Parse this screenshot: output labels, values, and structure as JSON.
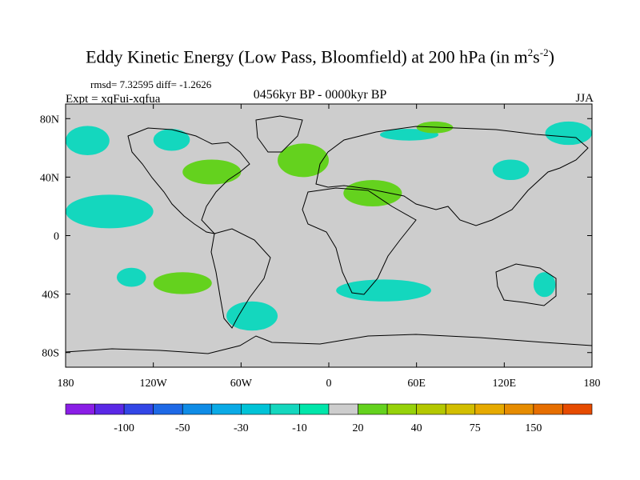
{
  "title": "Eddy Kinetic Energy (Low Pass, Bloomfield) at 200 hPa (in m",
  "title_unit_sup1": "2",
  "title_unit_mid": "s",
  "title_unit_sup2": "-2",
  "title_close": ")",
  "stats": "rmsd= 7.32595 diff= -1.2626",
  "experiment": "Expt = xqFui-xqfua",
  "period": "0456kyr BP - 0000kyr BP",
  "season": "JJA",
  "chart_data": {
    "type": "heatmap",
    "projection": "cylindrical-equidistant",
    "x_range": [
      -180,
      180
    ],
    "y_range": [
      -90,
      90
    ],
    "x_ticks": [
      {
        "value": -180,
        "label": "180"
      },
      {
        "value": -120,
        "label": "120W"
      },
      {
        "value": -60,
        "label": "60W"
      },
      {
        "value": 0,
        "label": "0"
      },
      {
        "value": 60,
        "label": "60E"
      },
      {
        "value": 120,
        "label": "120E"
      },
      {
        "value": 180,
        "label": "180"
      }
    ],
    "y_ticks": [
      {
        "value": 80,
        "label": "80N"
      },
      {
        "value": 40,
        "label": "40N"
      },
      {
        "value": 0,
        "label": "0"
      },
      {
        "value": -40,
        "label": "40S"
      },
      {
        "value": -80,
        "label": "80S"
      }
    ],
    "background_color": "#cdcdcd",
    "colorbar": {
      "colors": [
        "#8a1ee6",
        "#5a28e6",
        "#3246e6",
        "#1e69e6",
        "#0f8ce6",
        "#0aaae6",
        "#00c3d7",
        "#14d7be",
        "#00e6aa",
        "#cdcdcd",
        "#64d21e",
        "#96d20a",
        "#b4c800",
        "#d2be00",
        "#e6aa00",
        "#e68c00",
        "#e66e00",
        "#e64b00"
      ],
      "labels": [
        {
          "after_index": 1,
          "text": "-100"
        },
        {
          "after_index": 3,
          "text": "-50"
        },
        {
          "after_index": 5,
          "text": "-30"
        },
        {
          "after_index": 7,
          "text": "-10"
        },
        {
          "after_index": 9,
          "text": "20"
        },
        {
          "after_index": 11,
          "text": "40"
        },
        {
          "after_index": 13,
          "text": "75"
        },
        {
          "after_index": 15,
          "text": "150"
        }
      ]
    },
    "anomaly_regions": [
      {
        "class": "negative",
        "color": "#14d7be",
        "lon_range": [
          -180,
          -150
        ],
        "lat_range": [
          55,
          75
        ]
      },
      {
        "class": "negative",
        "color": "#14d7be",
        "lon_range": [
          -120,
          -95
        ],
        "lat_range": [
          58,
          73
        ]
      },
      {
        "class": "negative",
        "color": "#14d7be",
        "lon_range": [
          -180,
          -120
        ],
        "lat_range": [
          5,
          28
        ]
      },
      {
        "class": "negative",
        "color": "#14d7be",
        "lon_range": [
          -145,
          -125
        ],
        "lat_range": [
          -35,
          -22
        ]
      },
      {
        "class": "negative",
        "color": "#14d7be",
        "lon_range": [
          -70,
          -35
        ],
        "lat_range": [
          -65,
          -45
        ]
      },
      {
        "class": "negative",
        "color": "#14d7be",
        "lon_range": [
          5,
          70
        ],
        "lat_range": [
          -45,
          -30
        ]
      },
      {
        "class": "negative",
        "color": "#14d7be",
        "lon_range": [
          112,
          137
        ],
        "lat_range": [
          38,
          52
        ]
      },
      {
        "class": "negative",
        "color": "#14d7be",
        "lon_range": [
          148,
          180
        ],
        "lat_range": [
          62,
          78
        ]
      },
      {
        "class": "negative",
        "color": "#14d7be",
        "lon_range": [
          35,
          75
        ],
        "lat_range": [
          65,
          73
        ]
      },
      {
        "class": "negative",
        "color": "#14d7be",
        "lon_range": [
          140,
          155
        ],
        "lat_range": [
          -42,
          -25
        ]
      },
      {
        "class": "positive",
        "color": "#64d21e",
        "lon_range": [
          -100,
          -60
        ],
        "lat_range": [
          35,
          52
        ]
      },
      {
        "class": "positive",
        "color": "#64d21e",
        "lon_range": [
          -35,
          0
        ],
        "lat_range": [
          40,
          63
        ]
      },
      {
        "class": "positive",
        "color": "#64d21e",
        "lon_range": [
          10,
          50
        ],
        "lat_range": [
          20,
          38
        ]
      },
      {
        "class": "positive",
        "color": "#64d21e",
        "lon_range": [
          -120,
          -80
        ],
        "lat_range": [
          -40,
          -25
        ]
      },
      {
        "class": "positive",
        "color": "#64d21e",
        "lon_range": [
          60,
          85
        ],
        "lat_range": [
          70,
          78
        ]
      }
    ]
  }
}
